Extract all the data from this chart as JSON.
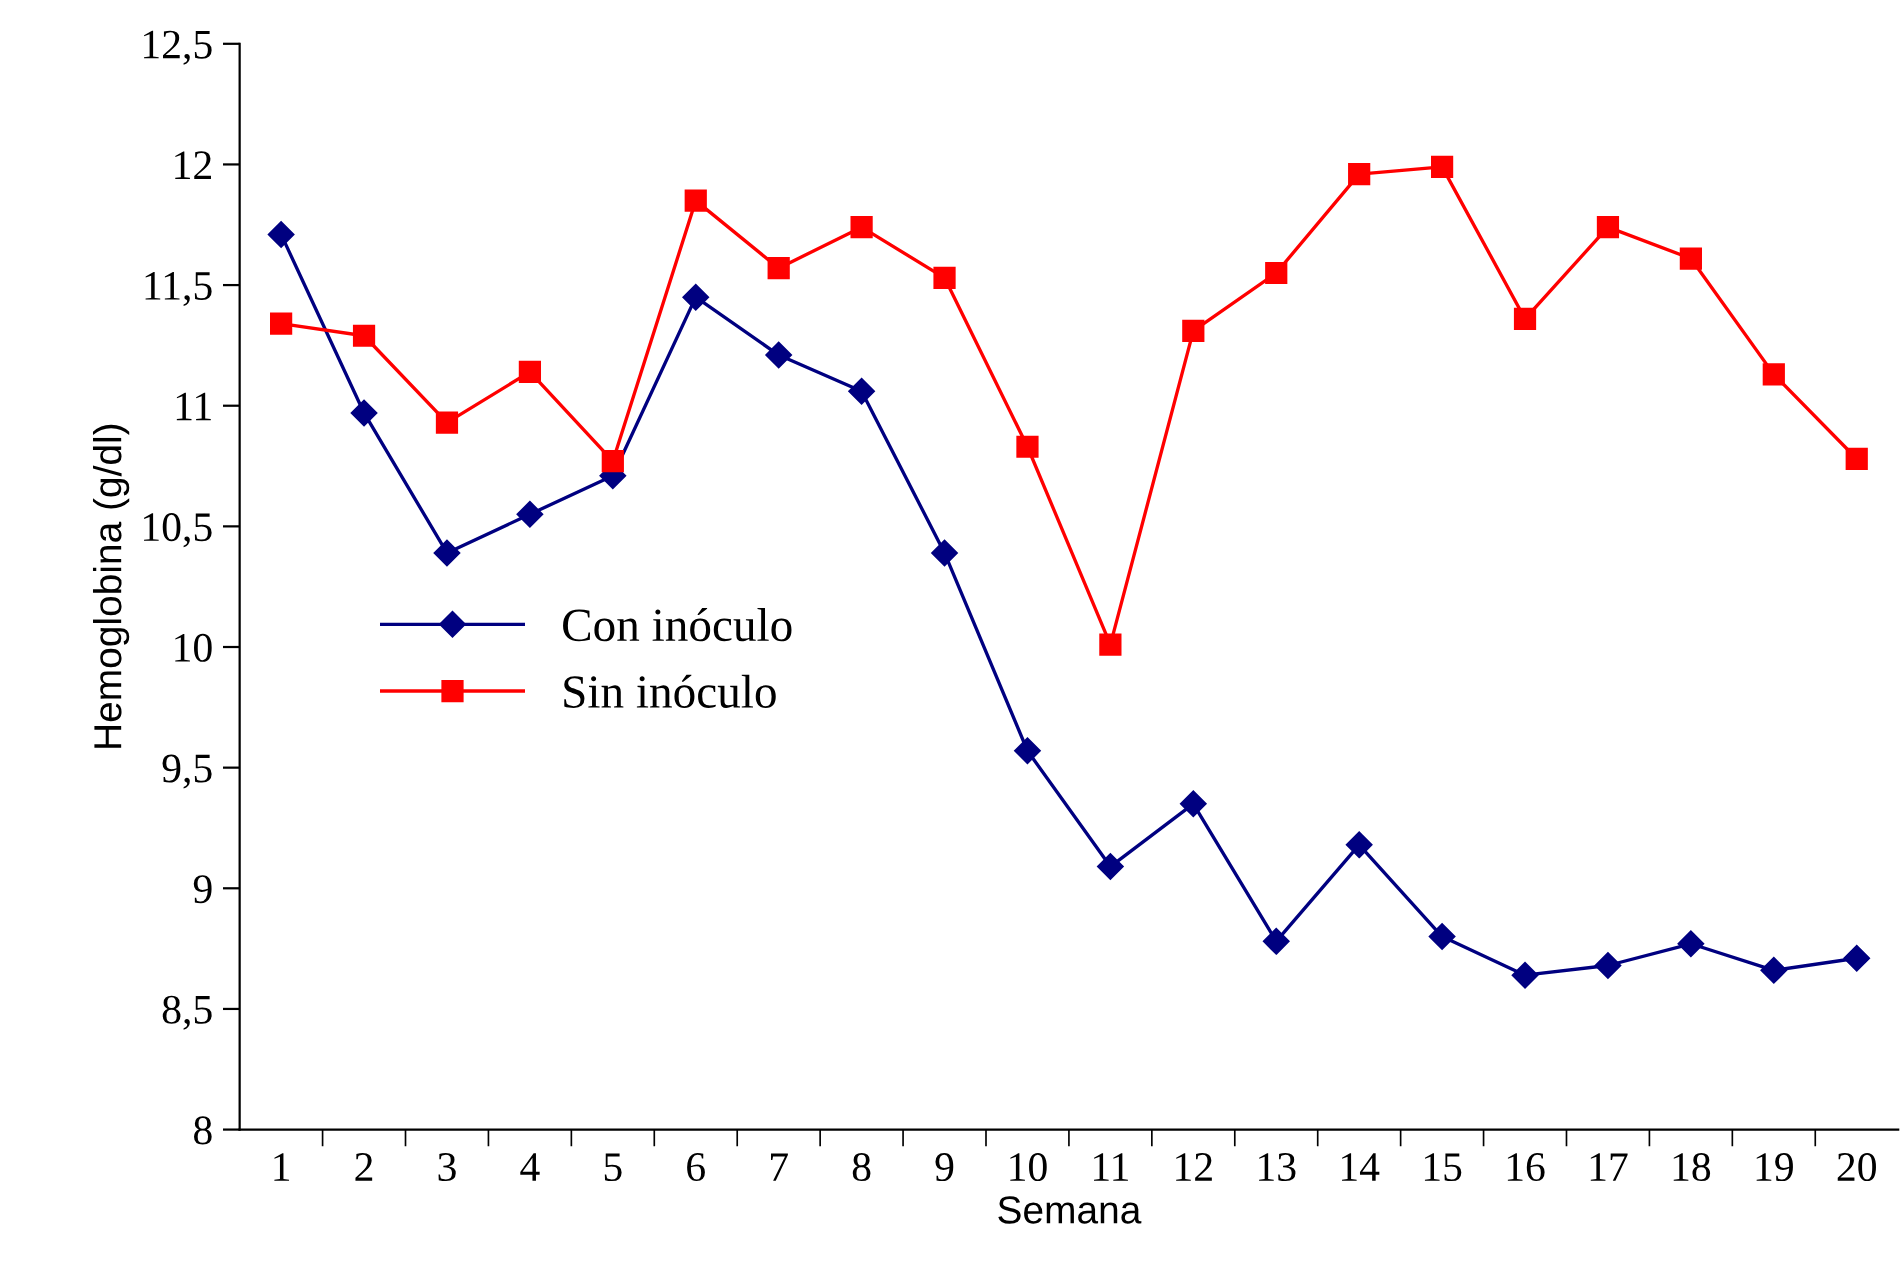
{
  "chart_data": {
    "type": "line",
    "xlabel": "Semana",
    "ylabel": "Hemoglobina (g/dl)",
    "categories": [
      "1",
      "2",
      "3",
      "4",
      "5",
      "6",
      "7",
      "8",
      "9",
      "10",
      "11",
      "12",
      "13",
      "14",
      "15",
      "16",
      "17",
      "18",
      "19",
      "20"
    ],
    "series": [
      {
        "name": "Con inóculo",
        "color": "#000080",
        "marker": "diamond",
        "values": [
          11.71,
          10.97,
          10.39,
          10.55,
          10.71,
          11.45,
          11.21,
          11.06,
          10.39,
          9.57,
          9.09,
          9.35,
          8.78,
          9.18,
          8.8,
          8.64,
          8.68,
          8.77,
          8.66,
          8.71
        ]
      },
      {
        "name": "Sin inóculo",
        "color": "#ff0000",
        "marker": "square",
        "values": [
          11.34,
          11.29,
          10.93,
          11.14,
          10.77,
          11.85,
          11.57,
          11.74,
          11.53,
          10.83,
          10.01,
          11.31,
          11.55,
          11.96,
          11.99,
          11.36,
          11.74,
          11.61,
          11.13,
          10.78
        ]
      }
    ],
    "ylim": [
      8,
      12.5
    ],
    "yticks": [
      8,
      {
        "value": 8.5,
        "label": "8,5"
      },
      9,
      {
        "value": 9.5,
        "label": "9,5"
      },
      10,
      {
        "value": 10.5,
        "label": "10,5"
      },
      11,
      {
        "value": 11.5,
        "label": "11,5"
      },
      12,
      {
        "value": 12.5,
        "label": "12,5"
      }
    ],
    "grid": false,
    "legend": "center left",
    "line_style": "solid"
  }
}
